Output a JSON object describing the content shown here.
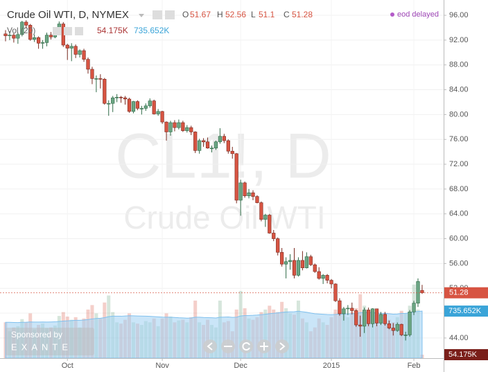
{
  "chart_data": {
    "type": "candlestick",
    "title": "Crude Oil WTI, D, NYMEX",
    "watermark": [
      "CL1!, D",
      "Crude Oil WTI"
    ],
    "status": "eod delayed",
    "ohlc_labels": [
      "O",
      "H",
      "L",
      "C"
    ],
    "volume_legend": "Vol (20)",
    "sponsor": "Sponsored by",
    "sponsor_name": "EXANTE",
    "up_color": "#6ba583",
    "down_color": "#d75442",
    "volume_ma_color": "#9fd0f2",
    "grid": true,
    "ylim": [
      40.75,
      98.46
    ],
    "yticks": [
      {
        "value": 44,
        "label": "44.00"
      },
      {
        "value": 48,
        "label": "48.00"
      },
      {
        "value": 52,
        "label": "52.00"
      },
      {
        "value": 56,
        "label": "56.00"
      },
      {
        "value": 60,
        "label": "60.00"
      },
      {
        "value": 64,
        "label": "64.00"
      },
      {
        "value": 68,
        "label": "68.00"
      },
      {
        "value": 72,
        "label": "72.00"
      },
      {
        "value": 76,
        "label": "76.00"
      },
      {
        "value": 80,
        "label": "80.00"
      },
      {
        "value": 84,
        "label": "84.00"
      },
      {
        "value": 88,
        "label": "88.00"
      },
      {
        "value": 92,
        "label": "92.00"
      },
      {
        "value": 96,
        "label": "96.00"
      }
    ],
    "y2lim": [
      0,
      5600
    ],
    "categories": [
      null,
      null,
      null,
      null,
      null,
      null,
      null,
      null,
      null,
      null,
      null,
      null,
      null,
      null,
      null,
      "Oct",
      null,
      null,
      null,
      null,
      null,
      null,
      null,
      null,
      null,
      null,
      null,
      null,
      null,
      null,
      null,
      null,
      null,
      null,
      null,
      null,
      null,
      null,
      "Nov",
      null,
      null,
      null,
      null,
      null,
      null,
      null,
      null,
      null,
      null,
      null,
      null,
      null,
      null,
      null,
      null,
      null,
      null,
      "Dec",
      null,
      null,
      null,
      null,
      null,
      null,
      null,
      null,
      null,
      null,
      null,
      null,
      null,
      null,
      null,
      null,
      null,
      null,
      null,
      null,
      null,
      "2015",
      null,
      null,
      null,
      null,
      null,
      null,
      null,
      null,
      null,
      null,
      null,
      null,
      null,
      null,
      null,
      null,
      null,
      null,
      null,
      "Feb",
      null,
      null
    ],
    "open": [
      93.0,
      92.7,
      92.8,
      92.3,
      92.9,
      94.9,
      94.4,
      92.1,
      92.4,
      91.5,
      91.6,
      92.8,
      92.5,
      93.5,
      94.6,
      91.2,
      90.7,
      91.0,
      89.7,
      90.3,
      88.9,
      87.3,
      85.8,
      85.8,
      85.7,
      81.8,
      81.8,
      82.7,
      82.8,
      82.7,
      82.5,
      80.5,
      82.1,
      81.0,
      81.0,
      81.4,
      82.2,
      80.1,
      80.5,
      78.8,
      77.2,
      78.7,
      77.9,
      78.7,
      77.4,
      77.9,
      77.2,
      74.2,
      75.8,
      75.6,
      74.6,
      74.6,
      75.6,
      76.5,
      75.8,
      74.1,
      73.7,
      66.2,
      69.0,
      66.9,
      67.4,
      66.8,
      65.8,
      63.1,
      63.8,
      60.9,
      60.0,
      57.8,
      55.9,
      56.3,
      56.5,
      54.1,
      56.5,
      55.3,
      57.1,
      55.8,
      54.7,
      53.6,
      54.1,
      53.3,
      52.7,
      50.0,
      47.9,
      48.7,
      48.8,
      48.4,
      46.1,
      45.9,
      48.5,
      46.3,
      48.7,
      46.4,
      47.8,
      46.3,
      45.6,
      45.2,
      46.2,
      44.5,
      44.5,
      48.2,
      49.6,
      51.67
    ],
    "high": [
      93.6,
      93.4,
      93.1,
      93.2,
      95.1,
      95.2,
      94.6,
      92.9,
      92.6,
      92.0,
      93.2,
      93.3,
      93.8,
      95.0,
      94.9,
      91.4,
      91.5,
      91.3,
      90.5,
      90.6,
      89.2,
      87.7,
      86.3,
      86.5,
      85.9,
      82.3,
      83.0,
      83.3,
      83.0,
      83.0,
      82.7,
      82.2,
      82.3,
      81.4,
      81.8,
      82.6,
      82.4,
      80.9,
      80.6,
      78.9,
      79.0,
      79.1,
      79.2,
      79.0,
      78.3,
      78.2,
      77.3,
      76.1,
      76.2,
      76.3,
      75.0,
      75.8,
      77.8,
      76.9,
      76.0,
      74.8,
      73.8,
      69.5,
      69.2,
      68.0,
      67.8,
      67.0,
      66.0,
      64.0,
      64.0,
      61.4,
      60.2,
      58.5,
      57.0,
      57.5,
      58.5,
      57.0,
      58.0,
      57.8,
      57.4,
      56.0,
      55.4,
      54.3,
      54.3,
      53.5,
      52.8,
      50.4,
      49.0,
      49.3,
      49.7,
      48.6,
      47.6,
      48.9,
      48.9,
      48.8,
      48.7,
      48.2,
      48.2,
      46.8,
      46.4,
      46.5,
      46.3,
      45.0,
      48.5,
      50.0,
      53.6,
      52.56
    ],
    "low": [
      91.8,
      92.0,
      91.6,
      91.4,
      92.6,
      93.9,
      91.9,
      91.7,
      90.6,
      90.6,
      91.0,
      92.1,
      92.3,
      93.2,
      90.9,
      88.8,
      88.6,
      89.1,
      89.2,
      88.5,
      86.6,
      84.9,
      83.6,
      84.2,
      81.6,
      79.8,
      80.4,
      82.0,
      81.9,
      81.6,
      80.3,
      80.2,
      80.7,
      80.0,
      80.6,
      81.1,
      80.0,
      79.8,
      78.5,
      75.8,
      76.6,
      77.3,
      77.6,
      77.2,
      77.1,
      76.7,
      73.8,
      73.7,
      74.8,
      74.5,
      73.9,
      74.3,
      75.3,
      75.4,
      73.7,
      72.9,
      65.7,
      63.7,
      66.6,
      66.5,
      66.2,
      65.7,
      62.8,
      61.9,
      60.8,
      59.6,
      57.3,
      55.5,
      53.6,
      55.0,
      53.6,
      53.9,
      54.9,
      55.2,
      55.6,
      54.5,
      53.4,
      52.7,
      52.8,
      52.0,
      49.8,
      47.6,
      46.8,
      47.7,
      47.8,
      45.8,
      44.2,
      44.8,
      45.9,
      45.7,
      45.9,
      46.1,
      46.0,
      45.4,
      44.4,
      45.0,
      44.3,
      43.6,
      44.2,
      47.7,
      49.0,
      51.1
    ],
    "close": [
      92.7,
      92.8,
      92.3,
      92.9,
      94.9,
      94.4,
      92.1,
      92.4,
      91.5,
      91.6,
      92.8,
      92.5,
      93.5,
      94.6,
      91.2,
      90.7,
      91.0,
      89.7,
      90.3,
      88.9,
      87.3,
      85.8,
      85.8,
      85.7,
      81.8,
      81.8,
      82.7,
      82.8,
      82.7,
      82.5,
      80.5,
      82.1,
      81.0,
      81.0,
      81.4,
      82.2,
      80.1,
      80.5,
      78.8,
      77.2,
      78.7,
      77.9,
      78.7,
      77.4,
      77.9,
      77.2,
      74.2,
      75.8,
      75.6,
      74.6,
      74.6,
      75.6,
      76.5,
      75.8,
      74.1,
      73.7,
      66.2,
      69.0,
      66.9,
      67.4,
      66.8,
      65.8,
      63.1,
      63.8,
      60.9,
      60.0,
      57.8,
      55.9,
      56.3,
      56.5,
      54.1,
      56.5,
      55.3,
      57.1,
      55.8,
      54.7,
      53.6,
      54.1,
      53.3,
      52.7,
      50.0,
      47.9,
      48.7,
      48.8,
      48.4,
      46.1,
      45.9,
      48.5,
      46.3,
      48.7,
      46.4,
      47.8,
      46.3,
      45.6,
      45.2,
      46.2,
      44.5,
      44.5,
      48.2,
      49.6,
      53.1,
      51.28
    ],
    "volume": [
      560,
      420,
      480,
      500,
      610,
      560,
      700,
      450,
      520,
      540,
      470,
      480,
      510,
      660,
      720,
      650,
      600,
      640,
      480,
      620,
      760,
      830,
      700,
      620,
      870,
      980,
      720,
      560,
      540,
      600,
      700,
      560,
      540,
      520,
      580,
      560,
      620,
      500,
      620,
      700,
      650,
      560,
      590,
      600,
      560,
      640,
      900,
      560,
      520,
      600,
      520,
      480,
      900,
      560,
      580,
      420,
      760,
      1050,
      780,
      620,
      600,
      640,
      720,
      760,
      820,
      760,
      720,
      880,
      780,
      700,
      680,
      900,
      620,
      560,
      420,
      480,
      620,
      560,
      520,
      640,
      760,
      860,
      700,
      640,
      720,
      780,
      1000,
      820,
      760,
      620,
      560,
      640,
      700,
      600,
      560,
      640,
      740,
      700,
      820,
      1150,
      760,
      54.175
    ],
    "volume_labels": [
      null,
      null,
      null,
      null,
      null,
      null,
      null,
      null,
      null,
      null,
      null,
      null,
      null,
      null,
      null,
      null,
      null,
      null,
      null,
      null,
      null,
      null,
      null,
      null,
      null,
      null,
      null,
      null,
      null,
      null,
      null,
      null,
      null,
      null,
      null,
      null,
      null,
      null,
      null,
      null,
      null,
      null,
      null,
      null,
      null,
      null,
      null,
      null,
      null,
      null,
      null,
      null,
      null,
      null,
      null,
      null,
      null,
      null,
      null,
      null,
      null,
      null,
      null,
      null,
      null,
      null,
      null,
      null,
      null,
      null,
      null,
      null,
      null,
      null,
      null,
      null,
      null,
      null,
      null,
      null,
      null,
      null,
      null,
      null,
      null,
      null,
      null,
      null,
      null,
      null,
      null,
      null,
      null,
      null,
      null,
      null,
      null,
      null,
      null,
      null,
      null,
      "54.175K"
    ],
    "volume_ma": [
      560,
      560,
      558,
      556,
      560,
      562,
      566,
      565,
      564,
      566,
      565,
      566,
      568,
      574,
      580,
      584,
      588,
      592,
      592,
      596,
      604,
      614,
      620,
      624,
      634,
      648,
      656,
      656,
      656,
      660,
      664,
      662,
      660,
      658,
      656,
      654,
      650,
      646,
      642,
      640,
      640,
      636,
      632,
      630,
      626,
      628,
      640,
      640,
      636,
      634,
      632,
      628,
      640,
      642,
      644,
      638,
      640,
      660,
      666,
      668,
      670,
      674,
      680,
      686,
      694,
      702,
      708,
      716,
      722,
      724,
      726,
      734,
      726,
      718,
      706,
      694,
      690,
      686,
      682,
      680,
      684,
      690,
      690,
      692,
      694,
      700,
      712,
      716,
      718,
      714,
      706,
      702,
      700,
      694,
      688,
      690,
      698,
      700,
      710,
      726,
      730,
      735.652
    ],
    "volume_ma_labels": [
      null,
      null,
      null,
      null,
      null,
      null,
      null,
      null,
      null,
      null,
      null,
      null,
      null,
      null,
      null,
      null,
      null,
      null,
      null,
      null,
      null,
      null,
      null,
      null,
      null,
      null,
      null,
      null,
      null,
      null,
      null,
      null,
      null,
      null,
      null,
      null,
      null,
      null,
      null,
      null,
      null,
      null,
      null,
      null,
      null,
      null,
      null,
      null,
      null,
      null,
      null,
      null,
      null,
      null,
      null,
      null,
      null,
      null,
      null,
      null,
      null,
      null,
      null,
      null,
      null,
      null,
      null,
      null,
      null,
      null,
      null,
      null,
      null,
      null,
      null,
      null,
      null,
      null,
      null,
      null,
      null,
      null,
      null,
      null,
      null,
      null,
      null,
      null,
      null,
      null,
      null,
      null,
      null,
      null,
      null,
      null,
      null,
      null,
      null,
      null,
      null,
      "735.652K"
    ]
  }
}
